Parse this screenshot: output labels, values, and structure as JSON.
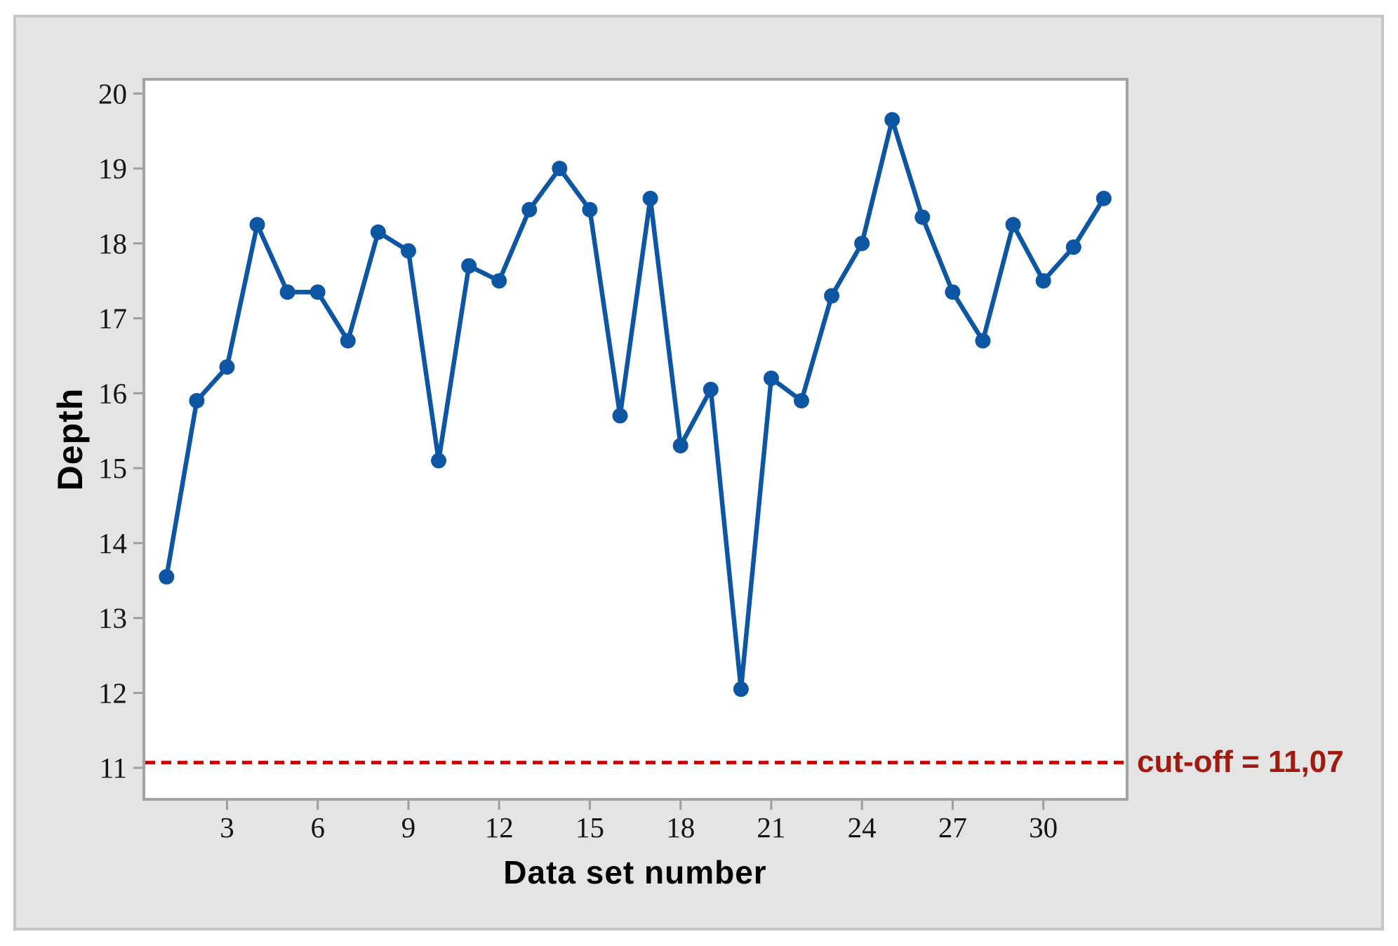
{
  "chart_data": {
    "type": "line",
    "title": "",
    "xlabel": "Data set number",
    "ylabel": "Depth",
    "x": [
      1,
      2,
      3,
      4,
      5,
      6,
      7,
      8,
      9,
      10,
      11,
      12,
      13,
      14,
      15,
      16,
      17,
      18,
      19,
      20,
      21,
      22,
      23,
      24,
      25,
      26,
      27,
      28,
      29,
      30,
      31,
      32
    ],
    "y": [
      13.55,
      15.9,
      16.35,
      18.25,
      17.35,
      17.35,
      16.7,
      18.15,
      17.9,
      15.1,
      17.7,
      17.5,
      18.45,
      19.0,
      18.45,
      15.7,
      18.6,
      15.3,
      16.05,
      12.05,
      16.2,
      15.9,
      17.3,
      18.0,
      19.65,
      18.35,
      17.35,
      16.7,
      18.25,
      17.5,
      17.95,
      18.6
    ],
    "x_ticks": [
      3,
      6,
      9,
      12,
      15,
      18,
      21,
      24,
      27,
      30
    ],
    "y_ticks": [
      20,
      19,
      18,
      17,
      16,
      15,
      14,
      13,
      12,
      11
    ],
    "xlim": [
      0.25,
      32.77
    ],
    "ylim": [
      10.58,
      20.19
    ],
    "grid": false,
    "legend": false,
    "reference_line": {
      "axis": "y",
      "value": 11.07,
      "label": "cut-off = 11,07"
    },
    "colors": {
      "series": "#0d56a4",
      "reference_line": "#c80000",
      "reference_label": "#a11a0f",
      "plot_background": "#ffffff",
      "panel_background": "#e4e4e4",
      "frame": "#a3a3a3",
      "tick": "#9e9e9e",
      "tick_label": "#141414"
    }
  }
}
